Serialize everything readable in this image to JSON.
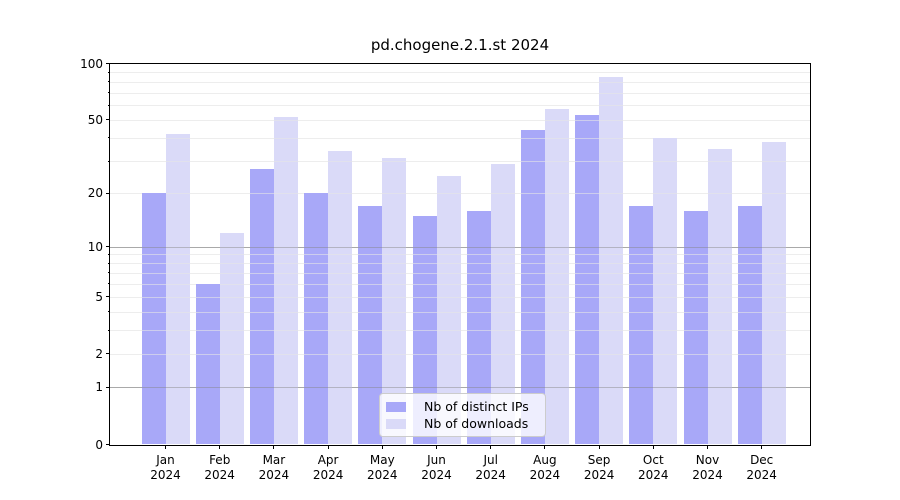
{
  "title": "pd.chogene.2.1.st 2024",
  "chart_data": {
    "type": "bar",
    "scale": "log1p",
    "title": "pd.chogene.2.1.st 2024",
    "categories": [
      "Jan 2024",
      "Feb 2024",
      "Mar 2024",
      "Apr 2024",
      "May 2024",
      "Jun 2024",
      "Jul 2024",
      "Aug 2024",
      "Sep 2024",
      "Oct 2024",
      "Nov 2024",
      "Dec 2024"
    ],
    "series": [
      {
        "name": "Nb of distinct IPs",
        "color": "#a8a8f8",
        "values": [
          20,
          6,
          27,
          20,
          17,
          15,
          16,
          44,
          53,
          17,
          16,
          17
        ]
      },
      {
        "name": "Nb of downloads",
        "color": "#dadaf8",
        "values": [
          42,
          12,
          52,
          34,
          31,
          25,
          29,
          57,
          85,
          40,
          35,
          38
        ]
      }
    ],
    "xlabel": "",
    "ylabel": "",
    "ylim": [
      0,
      100
    ],
    "yticks": [
      0,
      1,
      2,
      5,
      10,
      20,
      50,
      100
    ],
    "grid": {
      "major": [
        1,
        10
      ],
      "minor": [
        2,
        3,
        4,
        5,
        6,
        7,
        8,
        9,
        20,
        30,
        40,
        50,
        60,
        70,
        80,
        90
      ],
      "minor_axis_ticks": [
        3,
        4,
        6,
        7,
        8,
        9,
        30,
        40,
        60,
        70,
        80,
        90
      ]
    },
    "legend": {
      "position": "bottom-center",
      "labels": [
        "Nb of distinct IPs",
        "Nb of downloads"
      ]
    },
    "colors": {
      "axis": "#000000",
      "grid_major": "#a9a9a9",
      "grid_minor": "#ededed",
      "background": "#ffffff"
    }
  }
}
